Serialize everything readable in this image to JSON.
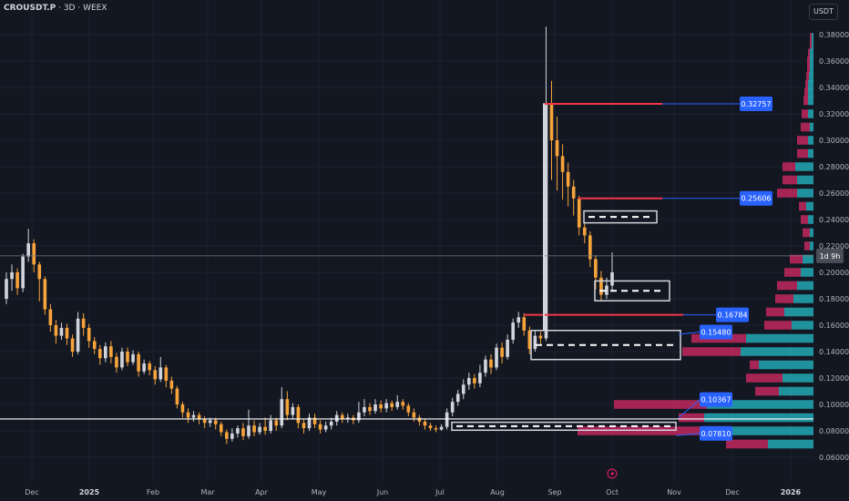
{
  "header": {
    "symbol": "CROUSDT.P",
    "sep1": " · ",
    "interval": "3D",
    "sep2": " · ",
    "exchange": "WEEX"
  },
  "currency_button": "USDT",
  "lightning_icon": "lightning-icon",
  "colors": {
    "background": "#131722",
    "grid": "#1e222d",
    "candle_up": "#d1d4dc",
    "candle_down": "#f7a33b",
    "level_line": "#f23645",
    "price_label": "#2962ff",
    "box": "#d1d4dc",
    "vp_pink": "#c2285d",
    "vp_teal": "#22a8b3"
  },
  "price_labels": {
    "l1": "0.32757",
    "l2": "0.25606",
    "l3": "0.16784",
    "l4": "0.15480",
    "l5": "0.10367",
    "l6": "0.07810",
    "countdown": "1d 9h"
  },
  "chart_data": {
    "type": "candlestick",
    "y_axis": {
      "ticks": [
        "0.38000",
        "0.36000",
        "0.34000",
        "0.32000",
        "0.30000",
        "0.28000",
        "0.26000",
        "0.24000",
        "0.22000",
        "0.20000",
        "0.18000",
        "0.16000",
        "0.14000",
        "0.12000",
        "0.10000",
        "0.08000",
        "0.06000"
      ],
      "range": [
        0.057,
        0.388
      ]
    },
    "x_axis": {
      "ticks": [
        {
          "label": "Dec",
          "bold": false
        },
        {
          "label": "2025",
          "bold": true
        },
        {
          "label": "Feb",
          "bold": false
        },
        {
          "label": "Mar",
          "bold": false
        },
        {
          "label": "Apr",
          "bold": false
        },
        {
          "label": "May",
          "bold": false
        },
        {
          "label": "Jun",
          "bold": false
        },
        {
          "label": "Jul",
          "bold": false
        },
        {
          "label": "Aug",
          "bold": false
        },
        {
          "label": "Sep",
          "bold": false
        },
        {
          "label": "Oct",
          "bold": false
        },
        {
          "label": "Nov",
          "bold": false
        },
        {
          "label": "Dec",
          "bold": false
        },
        {
          "label": "2026",
          "bold": true
        }
      ]
    },
    "candles": [
      [
        0.18,
        0.195,
        0.176,
        0.2
      ],
      [
        0.195,
        0.2,
        0.186,
        0.206
      ],
      [
        0.2,
        0.188,
        0.183,
        0.203
      ],
      [
        0.188,
        0.212,
        0.185,
        0.214
      ],
      [
        0.212,
        0.222,
        0.208,
        0.233
      ],
      [
        0.222,
        0.206,
        0.2,
        0.225
      ],
      [
        0.206,
        0.195,
        0.178,
        0.208
      ],
      [
        0.195,
        0.172,
        0.168,
        0.197
      ],
      [
        0.172,
        0.16,
        0.155,
        0.176
      ],
      [
        0.16,
        0.152,
        0.146,
        0.164
      ],
      [
        0.152,
        0.158,
        0.149,
        0.162
      ],
      [
        0.158,
        0.15,
        0.145,
        0.161
      ],
      [
        0.15,
        0.14,
        0.136,
        0.153
      ],
      [
        0.14,
        0.165,
        0.138,
        0.17
      ],
      [
        0.165,
        0.158,
        0.152,
        0.169
      ],
      [
        0.158,
        0.148,
        0.143,
        0.161
      ],
      [
        0.148,
        0.142,
        0.138,
        0.151
      ],
      [
        0.142,
        0.135,
        0.13,
        0.145
      ],
      [
        0.135,
        0.144,
        0.132,
        0.147
      ],
      [
        0.144,
        0.136,
        0.131,
        0.148
      ],
      [
        0.136,
        0.128,
        0.124,
        0.139
      ],
      [
        0.128,
        0.14,
        0.126,
        0.143
      ],
      [
        0.14,
        0.132,
        0.129,
        0.143
      ],
      [
        0.132,
        0.138,
        0.13,
        0.141
      ],
      [
        0.138,
        0.125,
        0.121,
        0.14
      ],
      [
        0.125,
        0.131,
        0.123,
        0.134
      ],
      [
        0.131,
        0.126,
        0.122,
        0.133
      ],
      [
        0.126,
        0.119,
        0.115,
        0.129
      ],
      [
        0.119,
        0.128,
        0.117,
        0.136
      ],
      [
        0.128,
        0.118,
        0.113,
        0.13
      ],
      [
        0.118,
        0.112,
        0.108,
        0.121
      ],
      [
        0.112,
        0.1,
        0.097,
        0.114
      ],
      [
        0.1,
        0.094,
        0.09,
        0.102
      ],
      [
        0.094,
        0.09,
        0.086,
        0.097
      ],
      [
        0.09,
        0.092,
        0.087,
        0.095
      ],
      [
        0.092,
        0.089,
        0.085,
        0.094
      ],
      [
        0.089,
        0.086,
        0.082,
        0.091
      ],
      [
        0.086,
        0.088,
        0.083,
        0.09
      ],
      [
        0.088,
        0.085,
        0.081,
        0.09
      ],
      [
        0.085,
        0.079,
        0.076,
        0.087
      ],
      [
        0.079,
        0.074,
        0.07,
        0.081
      ],
      [
        0.074,
        0.078,
        0.072,
        0.082
      ],
      [
        0.078,
        0.082,
        0.075,
        0.084
      ],
      [
        0.082,
        0.076,
        0.073,
        0.086
      ],
      [
        0.076,
        0.084,
        0.074,
        0.096
      ],
      [
        0.084,
        0.079,
        0.076,
        0.088
      ],
      [
        0.079,
        0.083,
        0.077,
        0.086
      ],
      [
        0.083,
        0.08,
        0.077,
        0.09
      ],
      [
        0.08,
        0.088,
        0.078,
        0.092
      ],
      [
        0.088,
        0.084,
        0.08,
        0.09
      ],
      [
        0.084,
        0.104,
        0.082,
        0.113
      ],
      [
        0.104,
        0.092,
        0.088,
        0.11
      ],
      [
        0.092,
        0.098,
        0.089,
        0.101
      ],
      [
        0.098,
        0.086,
        0.082,
        0.1
      ],
      [
        0.086,
        0.082,
        0.078,
        0.089
      ],
      [
        0.082,
        0.09,
        0.08,
        0.093
      ],
      [
        0.09,
        0.085,
        0.082,
        0.093
      ],
      [
        0.085,
        0.081,
        0.078,
        0.088
      ],
      [
        0.081,
        0.084,
        0.079,
        0.087
      ],
      [
        0.084,
        0.087,
        0.081,
        0.09
      ],
      [
        0.087,
        0.092,
        0.084,
        0.095
      ],
      [
        0.092,
        0.089,
        0.086,
        0.094
      ],
      [
        0.089,
        0.09,
        0.086,
        0.093
      ],
      [
        0.09,
        0.088,
        0.085,
        0.092
      ],
      [
        0.088,
        0.094,
        0.086,
        0.102
      ],
      [
        0.094,
        0.098,
        0.091,
        0.104
      ],
      [
        0.098,
        0.095,
        0.092,
        0.101
      ],
      [
        0.095,
        0.1,
        0.093,
        0.104
      ],
      [
        0.1,
        0.097,
        0.094,
        0.103
      ],
      [
        0.097,
        0.101,
        0.094,
        0.104
      ],
      [
        0.101,
        0.098,
        0.095,
        0.103
      ],
      [
        0.098,
        0.102,
        0.096,
        0.107
      ],
      [
        0.102,
        0.099,
        0.096,
        0.104
      ],
      [
        0.099,
        0.094,
        0.091,
        0.101
      ],
      [
        0.094,
        0.09,
        0.087,
        0.097
      ],
      [
        0.09,
        0.087,
        0.084,
        0.092
      ],
      [
        0.087,
        0.084,
        0.081,
        0.089
      ],
      [
        0.084,
        0.082,
        0.08,
        0.086
      ],
      [
        0.082,
        0.081,
        0.079,
        0.084
      ],
      [
        0.081,
        0.083,
        0.08,
        0.085
      ],
      [
        0.083,
        0.094,
        0.081,
        0.097
      ],
      [
        0.094,
        0.102,
        0.091,
        0.105
      ],
      [
        0.102,
        0.108,
        0.099,
        0.111
      ],
      [
        0.108,
        0.115,
        0.104,
        0.119
      ],
      [
        0.115,
        0.12,
        0.111,
        0.124
      ],
      [
        0.12,
        0.116,
        0.112,
        0.123
      ],
      [
        0.116,
        0.124,
        0.113,
        0.13
      ],
      [
        0.124,
        0.134,
        0.121,
        0.137
      ],
      [
        0.134,
        0.128,
        0.123,
        0.138
      ],
      [
        0.128,
        0.143,
        0.126,
        0.146
      ],
      [
        0.143,
        0.136,
        0.131,
        0.147
      ],
      [
        0.136,
        0.149,
        0.134,
        0.153
      ],
      [
        0.149,
        0.162,
        0.146,
        0.165
      ],
      [
        0.162,
        0.166,
        0.158,
        0.17
      ],
      [
        0.166,
        0.156,
        0.152,
        0.169
      ],
      [
        0.156,
        0.142,
        0.138,
        0.159
      ],
      [
        0.142,
        0.152,
        0.14,
        0.156
      ],
      [
        0.152,
        0.15,
        0.146,
        0.155
      ],
      [
        0.15,
        0.328,
        0.148,
        0.386
      ],
      [
        0.328,
        0.3,
        0.27,
        0.345
      ],
      [
        0.3,
        0.288,
        0.262,
        0.318
      ],
      [
        0.288,
        0.276,
        0.255,
        0.297
      ],
      [
        0.276,
        0.265,
        0.25,
        0.283
      ],
      [
        0.265,
        0.256,
        0.243,
        0.27
      ],
      [
        0.256,
        0.234,
        0.228,
        0.258
      ],
      [
        0.234,
        0.228,
        0.222,
        0.237
      ],
      [
        0.228,
        0.21,
        0.204,
        0.231
      ],
      [
        0.21,
        0.196,
        0.187,
        0.213
      ],
      [
        0.196,
        0.183,
        0.178,
        0.201
      ],
      [
        0.183,
        0.19,
        0.18,
        0.196
      ],
      [
        0.19,
        0.2,
        0.186,
        0.215
      ]
    ],
    "volume_profile": [
      {
        "price": 0.378,
        "pink": 2,
        "teal": 2
      },
      {
        "price": 0.372,
        "pink": 2,
        "teal": 2
      },
      {
        "price": 0.366,
        "pink": 2,
        "teal": 4
      },
      {
        "price": 0.36,
        "pink": 3,
        "teal": 4
      },
      {
        "price": 0.354,
        "pink": 3,
        "teal": 4
      },
      {
        "price": 0.348,
        "pink": 3,
        "teal": 5
      },
      {
        "price": 0.342,
        "pink": 3,
        "teal": 6
      },
      {
        "price": 0.336,
        "pink": 4,
        "teal": 6
      },
      {
        "price": 0.33,
        "pink": 5,
        "teal": 6
      },
      {
        "price": 0.32,
        "pink": 7,
        "teal": 6
      },
      {
        "price": 0.31,
        "pink": 10,
        "teal": 4
      },
      {
        "price": 0.3,
        "pink": 12,
        "teal": 6
      },
      {
        "price": 0.29,
        "pink": 12,
        "teal": 6
      },
      {
        "price": 0.28,
        "pink": 14,
        "teal": 20
      },
      {
        "price": 0.27,
        "pink": 16,
        "teal": 18
      },
      {
        "price": 0.26,
        "pink": 22,
        "teal": 18
      },
      {
        "price": 0.25,
        "pink": 8,
        "teal": 8
      },
      {
        "price": 0.24,
        "pink": 8,
        "teal": 6
      },
      {
        "price": 0.23,
        "pink": 8,
        "teal": 4
      },
      {
        "price": 0.22,
        "pink": 6,
        "teal": 4
      },
      {
        "price": 0.21,
        "pink": 14,
        "teal": 12
      },
      {
        "price": 0.2,
        "pink": 18,
        "teal": 14
      },
      {
        "price": 0.19,
        "pink": 22,
        "teal": 18
      },
      {
        "price": 0.18,
        "pink": 20,
        "teal": 22
      },
      {
        "price": 0.17,
        "pink": 20,
        "teal": 32
      },
      {
        "price": 0.16,
        "pink": 30,
        "teal": 24
      },
      {
        "price": 0.15,
        "pink": 60,
        "teal": 74
      },
      {
        "price": 0.14,
        "pink": 64,
        "teal": 80
      },
      {
        "price": 0.13,
        "pink": 10,
        "teal": 60
      },
      {
        "price": 0.12,
        "pink": 40,
        "teal": 34
      },
      {
        "price": 0.11,
        "pink": 26,
        "teal": 38
      },
      {
        "price": 0.1,
        "pink": 102,
        "teal": 117
      },
      {
        "price": 0.09,
        "pink": 28,
        "teal": 120
      },
      {
        "price": 0.08,
        "pink": 135,
        "teal": 124
      },
      {
        "price": 0.07,
        "pink": 46,
        "teal": 50
      }
    ]
  }
}
